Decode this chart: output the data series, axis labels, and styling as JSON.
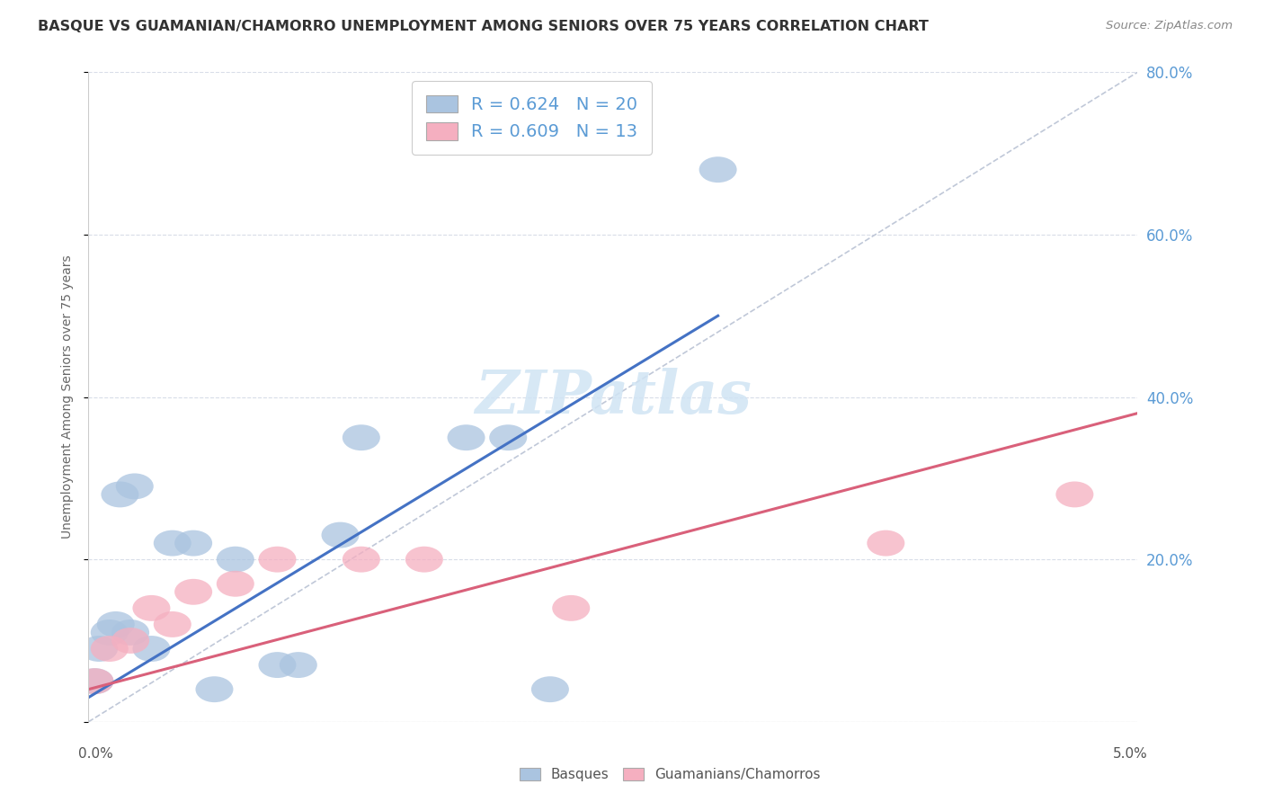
{
  "title": "BASQUE VS GUAMANIAN/CHAMORRO UNEMPLOYMENT AMONG SENIORS OVER 75 YEARS CORRELATION CHART",
  "source": "Source: ZipAtlas.com",
  "ylabel": "Unemployment Among Seniors over 75 years",
  "basque_R": 0.624,
  "basque_N": 20,
  "chamorro_R": 0.609,
  "chamorro_N": 13,
  "basque_color": "#aac4e0",
  "chamorro_color": "#f5afc0",
  "basque_line_color": "#4472C4",
  "chamorro_line_color": "#d9607a",
  "diagonal_color": "#c0c8d8",
  "legend_label_basque": "Basques",
  "legend_label_chamorro": "Guamanians/Chamorros",
  "background_color": "#ffffff",
  "grid_color": "#d8dde8",
  "title_color": "#333333",
  "right_axis_color": "#5B9BD5",
  "watermark_color": "#d0e4f4",
  "basque_x": [
    0.0003,
    0.0005,
    0.001,
    0.0013,
    0.0015,
    0.002,
    0.0022,
    0.003,
    0.004,
    0.005,
    0.006,
    0.007,
    0.009,
    0.01,
    0.012,
    0.013,
    0.018,
    0.02,
    0.022,
    0.03
  ],
  "basque_y": [
    0.05,
    0.09,
    0.11,
    0.12,
    0.28,
    0.11,
    0.29,
    0.09,
    0.22,
    0.22,
    0.04,
    0.2,
    0.07,
    0.07,
    0.23,
    0.35,
    0.35,
    0.35,
    0.04,
    0.68
  ],
  "chamorro_x": [
    0.0003,
    0.001,
    0.002,
    0.003,
    0.004,
    0.005,
    0.007,
    0.009,
    0.013,
    0.016,
    0.023,
    0.038,
    0.047
  ],
  "chamorro_y": [
    0.05,
    0.09,
    0.1,
    0.14,
    0.12,
    0.16,
    0.17,
    0.2,
    0.2,
    0.2,
    0.14,
    0.22,
    0.28
  ],
  "basque_line_x0": 0.0,
  "basque_line_y0": 0.03,
  "basque_line_x1": 0.03,
  "basque_line_y1": 0.5,
  "chamorro_line_x0": 0.0,
  "chamorro_line_y0": 0.04,
  "chamorro_line_x1": 0.05,
  "chamorro_line_y1": 0.38,
  "xlim": [
    0.0,
    0.05
  ],
  "ylim": [
    0.0,
    0.8
  ],
  "figsize": [
    14.06,
    8.92
  ],
  "dpi": 100
}
